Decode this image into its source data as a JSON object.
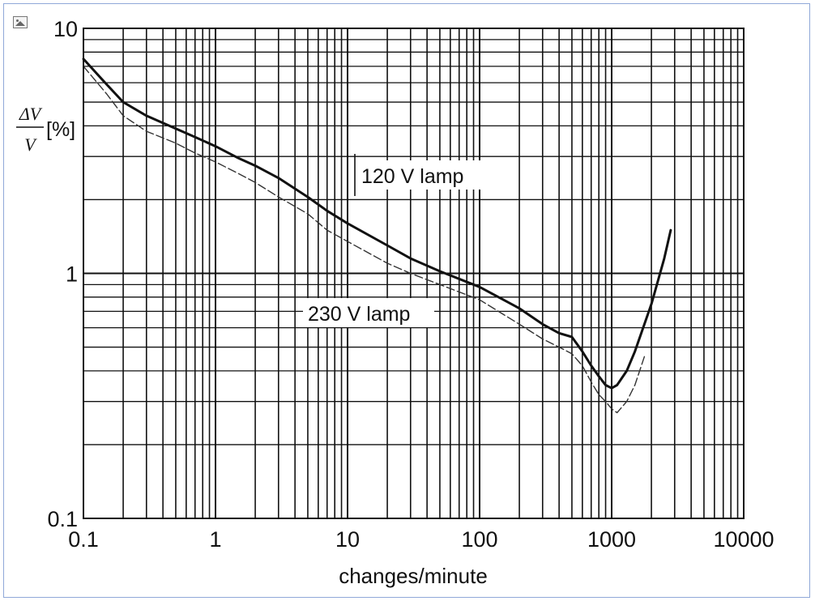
{
  "chart_data": {
    "type": "line",
    "title": "",
    "xlabel": "changes/minute",
    "ylabel": {
      "numerator": "ΔV",
      "denominator": "V",
      "unit": "[%]"
    },
    "xscale": "log",
    "yscale": "log",
    "xlim": [
      0.1,
      10000
    ],
    "ylim": [
      0.1,
      10
    ],
    "grid": true,
    "x_ticks": [
      "0.1",
      "1",
      "10",
      "100",
      "1000",
      "10000"
    ],
    "y_ticks": [
      "0.1",
      "1",
      "10"
    ],
    "series": [
      {
        "name": "120 V lamp",
        "style": "solid",
        "color": "#111111",
        "x": [
          0.1,
          0.15,
          0.2,
          0.3,
          0.5,
          0.7,
          1,
          1.5,
          2,
          3,
          5,
          7,
          10,
          20,
          30,
          50,
          100,
          200,
          300,
          400,
          500,
          600,
          700,
          800,
          900,
          1000,
          1100,
          1300,
          1500,
          2000,
          2500,
          2800
        ],
        "y": [
          7.5,
          5.9,
          5.0,
          4.4,
          3.9,
          3.6,
          3.3,
          2.95,
          2.75,
          2.45,
          2.05,
          1.8,
          1.6,
          1.3,
          1.15,
          1.02,
          0.88,
          0.72,
          0.62,
          0.57,
          0.55,
          0.48,
          0.42,
          0.38,
          0.35,
          0.34,
          0.35,
          0.4,
          0.48,
          0.75,
          1.15,
          1.5
        ]
      },
      {
        "name": "230 V lamp",
        "style": "dashed",
        "color": "#333333",
        "x": [
          0.1,
          0.15,
          0.2,
          0.3,
          0.5,
          0.7,
          1,
          1.5,
          2,
          3,
          5,
          7,
          10,
          20,
          30,
          50,
          100,
          200,
          300,
          400,
          500,
          600,
          700,
          800,
          900,
          1000,
          1100,
          1300,
          1500,
          1800
        ],
        "y": [
          7.0,
          5.4,
          4.4,
          3.8,
          3.4,
          3.1,
          2.85,
          2.55,
          2.35,
          2.05,
          1.75,
          1.5,
          1.35,
          1.1,
          1.0,
          0.9,
          0.78,
          0.62,
          0.54,
          0.5,
          0.47,
          0.42,
          0.36,
          0.32,
          0.3,
          0.28,
          0.27,
          0.3,
          0.35,
          0.47
        ]
      }
    ],
    "annotations": [
      {
        "text": "120 V lamp",
        "series": "120 V lamp"
      },
      {
        "text": "230 V lamp",
        "series": "230 V lamp"
      }
    ]
  }
}
